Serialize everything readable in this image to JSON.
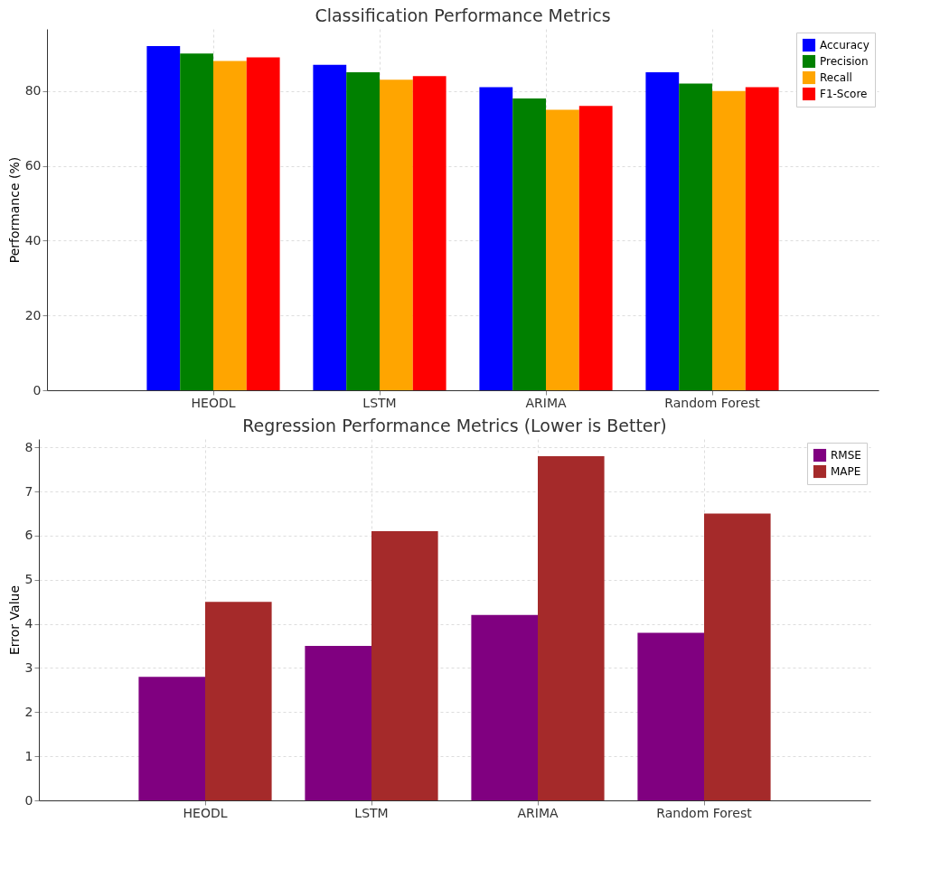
{
  "chart_data": [
    {
      "type": "bar",
      "title": "Classification Performance Metrics",
      "ylabel": "Performance (%)",
      "categories": [
        "HEODL",
        "LSTM",
        "ARIMA",
        "Random Forest"
      ],
      "series": [
        {
          "name": "Accuracy",
          "color": "#0000ff",
          "values": [
            92,
            87,
            81,
            85
          ]
        },
        {
          "name": "Precision",
          "color": "#008000",
          "values": [
            90,
            85,
            78,
            82
          ]
        },
        {
          "name": "Recall",
          "color": "#ffa500",
          "values": [
            88,
            83,
            75,
            80
          ]
        },
        {
          "name": "F1-Score",
          "color": "#ff0000",
          "values": [
            89,
            84,
            76,
            81
          ]
        }
      ],
      "ylim": [
        0,
        96.6
      ],
      "yticks": [
        0,
        20,
        40,
        60,
        80
      ],
      "grid": true,
      "legend": "top right"
    },
    {
      "type": "bar",
      "title": "Regression Performance Metrics (Lower is Better)",
      "ylabel": "Error Value",
      "categories": [
        "HEODL",
        "LSTM",
        "ARIMA",
        "Random Forest"
      ],
      "series": [
        {
          "name": "RMSE",
          "color": "#800080",
          "values": [
            2.8,
            3.5,
            4.2,
            3.8
          ]
        },
        {
          "name": "MAPE",
          "color": "#a52a2a",
          "values": [
            4.5,
            6.1,
            7.8,
            6.5
          ]
        }
      ],
      "ylim": [
        0,
        8.19
      ],
      "yticks": [
        0,
        1,
        2,
        3,
        4,
        5,
        6,
        7,
        8
      ],
      "grid": true,
      "legend": "top right"
    }
  ]
}
